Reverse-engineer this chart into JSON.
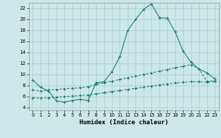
{
  "title": "",
  "xlabel": "Humidex (Indice chaleur)",
  "bg_color": "#cce8e8",
  "grid_color": "#aacece",
  "line_color": "#1a7a6a",
  "xlim": [
    -0.5,
    23.5
  ],
  "ylim": [
    3.5,
    23.0
  ],
  "xticks": [
    0,
    1,
    2,
    3,
    4,
    5,
    6,
    7,
    8,
    9,
    10,
    11,
    12,
    13,
    14,
    15,
    16,
    17,
    18,
    19,
    20,
    21,
    22,
    23
  ],
  "yticks": [
    4,
    6,
    8,
    10,
    12,
    14,
    16,
    18,
    20,
    22
  ],
  "line1_x": [
    0,
    1,
    2,
    3,
    4,
    5,
    6,
    7,
    8,
    9,
    10,
    11,
    12,
    13,
    14,
    15,
    16,
    17,
    18,
    19,
    20,
    21,
    22,
    23
  ],
  "line1_y": [
    9.0,
    7.7,
    7.0,
    5.2,
    5.0,
    5.3,
    5.5,
    5.3,
    8.5,
    8.7,
    10.5,
    13.2,
    18.0,
    20.0,
    21.8,
    22.8,
    20.3,
    20.2,
    17.7,
    14.2,
    12.2,
    11.0,
    10.3,
    9.2
  ],
  "line2_x": [
    0,
    1,
    2,
    3,
    4,
    5,
    6,
    7,
    8,
    9,
    10,
    11,
    12,
    13,
    14,
    15,
    16,
    17,
    18,
    19,
    20,
    21,
    22,
    23
  ],
  "line2_y": [
    7.2,
    7.0,
    7.2,
    7.3,
    7.4,
    7.5,
    7.6,
    7.8,
    8.2,
    8.5,
    8.8,
    9.1,
    9.4,
    9.7,
    10.0,
    10.3,
    10.6,
    10.9,
    11.2,
    11.5,
    11.8,
    11.0,
    8.8,
    8.9
  ],
  "line3_x": [
    0,
    1,
    2,
    3,
    4,
    5,
    6,
    7,
    8,
    9,
    10,
    11,
    12,
    13,
    14,
    15,
    16,
    17,
    18,
    19,
    20,
    21,
    22,
    23
  ],
  "line3_y": [
    5.8,
    5.7,
    5.8,
    5.9,
    6.0,
    6.1,
    6.2,
    6.3,
    6.5,
    6.7,
    6.9,
    7.1,
    7.3,
    7.5,
    7.7,
    7.9,
    8.1,
    8.3,
    8.5,
    8.6,
    8.7,
    8.7,
    8.6,
    8.7
  ]
}
